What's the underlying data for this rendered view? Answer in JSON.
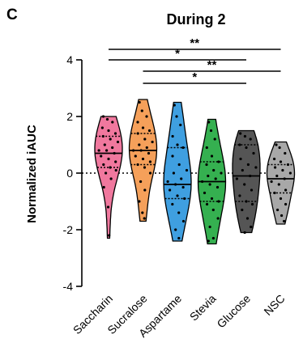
{
  "panel_label": "C",
  "chart_data": {
    "type": "violin",
    "title": "During 2",
    "xlabel": "",
    "ylabel": "Normalized iAUC",
    "ylim": [
      -4,
      4
    ],
    "yticks": [
      -4,
      -2,
      0,
      2,
      4
    ],
    "reference_line": 0,
    "categories": [
      "Saccharin",
      "Sucralose",
      "Aspartame",
      "Stevia",
      "Glucose",
      "NSC"
    ],
    "colors": [
      "#f0789e",
      "#f5a05a",
      "#3f9fe0",
      "#35b050",
      "#555555",
      "#a8a8a8"
    ],
    "groups": [
      {
        "name": "Saccharin",
        "min": -2.3,
        "max": 2.0,
        "median": 0.7,
        "q1": 0.2,
        "q3": 1.3,
        "points": [
          2.0,
          1.9,
          1.8,
          1.6,
          1.5,
          1.4,
          1.3,
          1.2,
          1.1,
          1.0,
          0.9,
          0.8,
          0.8,
          0.7,
          0.6,
          0.5,
          0.4,
          0.3,
          0.2,
          0.1,
          0.0,
          -0.2,
          -0.5,
          -1.2,
          -2.2
        ]
      },
      {
        "name": "Sucralose",
        "min": -1.7,
        "max": 2.6,
        "median": 0.8,
        "q1": 0.3,
        "q3": 1.4,
        "points": [
          2.5,
          2.2,
          2.0,
          1.8,
          1.6,
          1.5,
          1.4,
          1.2,
          1.1,
          1.0,
          0.9,
          0.8,
          0.8,
          0.7,
          0.6,
          0.5,
          0.4,
          0.3,
          0.2,
          0.0,
          -0.3,
          -0.6,
          -1.0,
          -1.4,
          -1.6
        ]
      },
      {
        "name": "Aspartame",
        "min": -2.4,
        "max": 2.5,
        "median": -0.4,
        "q1": -0.9,
        "q3": 0.9,
        "points": [
          2.4,
          2.0,
          1.7,
          1.3,
          1.0,
          0.9,
          0.6,
          0.3,
          0.1,
          0.0,
          -0.2,
          -0.3,
          -0.4,
          -0.5,
          -0.6,
          -0.8,
          -0.9,
          -1.1,
          -1.4,
          -1.7,
          -2.0,
          -2.3
        ]
      },
      {
        "name": "Stevia",
        "min": -2.5,
        "max": 1.9,
        "median": -0.3,
        "q1": -1.0,
        "q3": 0.4,
        "points": [
          1.8,
          1.5,
          1.2,
          0.9,
          0.6,
          0.4,
          0.3,
          0.1,
          0.0,
          -0.1,
          -0.2,
          -0.3,
          -0.4,
          -0.5,
          -0.7,
          -0.9,
          -1.0,
          -1.1,
          -1.3,
          -1.6,
          -1.9,
          -2.3,
          -2.4
        ]
      },
      {
        "name": "Glucose",
        "min": -2.1,
        "max": 1.5,
        "median": -0.1,
        "q1": -1.0,
        "q3": 1.0,
        "points": [
          1.4,
          1.3,
          1.2,
          1.0,
          0.9,
          0.7,
          0.5,
          0.3,
          0.2,
          0.1,
          -0.1,
          -0.2,
          -0.4,
          -0.6,
          -0.8,
          -1.0,
          -1.1,
          -1.3,
          -1.6,
          -1.9,
          -2.1
        ]
      },
      {
        "name": "NSC",
        "min": -1.8,
        "max": 1.1,
        "median": -0.2,
        "q1": -0.7,
        "q3": 0.3,
        "points": [
          1.0,
          0.9,
          0.7,
          0.5,
          0.4,
          0.3,
          0.2,
          0.1,
          0.0,
          -0.1,
          -0.2,
          -0.3,
          -0.4,
          -0.6,
          -0.7,
          -0.9,
          -1.1,
          -1.3,
          -1.5,
          -1.7
        ]
      }
    ],
    "significance": [
      {
        "from": "Saccharin",
        "to": "NSC",
        "label": "**"
      },
      {
        "from": "Saccharin",
        "to": "Glucose",
        "label": "*"
      },
      {
        "from": "Sucralose",
        "to": "NSC",
        "label": "**"
      },
      {
        "from": "Sucralose",
        "to": "Glucose",
        "label": "*"
      }
    ]
  }
}
